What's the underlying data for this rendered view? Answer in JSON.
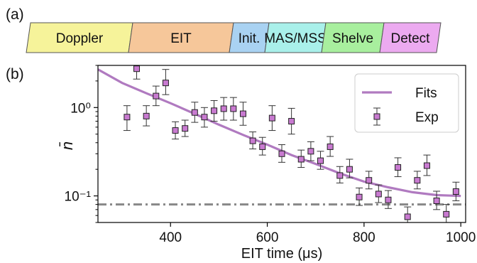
{
  "panel_a": {
    "label": "(a)",
    "blocks": [
      {
        "label": "Doppler",
        "color": "#f6f39a"
      },
      {
        "label": "EIT",
        "color": "#f6c79a"
      },
      {
        "label": "Init.",
        "color": "#a9d2f2"
      },
      {
        "label": "MAS/MSS",
        "color": "#a9f0ea"
      },
      {
        "label": "Shelve",
        "color": "#a8ef9e"
      },
      {
        "label": "Detect",
        "color": "#ecaaf0"
      }
    ]
  },
  "panel_b": {
    "label": "(b)"
  },
  "chart_data": {
    "type": "scatter",
    "xlabel": "EIT time (μs)",
    "ylabel": "n̄",
    "xlim": [
      250,
      1010
    ],
    "ylim": [
      0.05,
      3.0
    ],
    "yscale": "log",
    "xticks": [
      400,
      600,
      800,
      1000
    ],
    "xtick_labels": [
      "400",
      "600",
      "800",
      "1000"
    ],
    "yticks": [
      0.1,
      1.0
    ],
    "ytick_labels": [
      "10⁻¹",
      "10⁰"
    ],
    "legend": {
      "position": "top-right",
      "entries": [
        "Fits",
        "Exp"
      ]
    },
    "series": [
      {
        "name": "Fits",
        "kind": "line",
        "color": "#b07ac0",
        "x": [
          250,
          300,
          350,
          400,
          450,
          500,
          550,
          600,
          650,
          700,
          750,
          800,
          850,
          900,
          950,
          1000
        ],
        "y": [
          2.7,
          1.9,
          1.45,
          1.12,
          0.85,
          0.64,
          0.49,
          0.38,
          0.29,
          0.23,
          0.18,
          0.145,
          0.125,
          0.11,
          0.102,
          0.1
        ]
      },
      {
        "name": "Exp",
        "kind": "scatter",
        "color": "#c87ad0",
        "x": [
          310,
          330,
          350,
          370,
          390,
          410,
          430,
          450,
          470,
          490,
          510,
          530,
          550,
          570,
          590,
          610,
          630,
          650,
          670,
          690,
          710,
          730,
          750,
          770,
          790,
          810,
          830,
          850,
          870,
          890,
          910,
          930,
          950,
          970,
          990
        ],
        "y": [
          0.78,
          2.75,
          0.8,
          1.35,
          1.9,
          0.55,
          0.58,
          0.88,
          0.78,
          0.92,
          0.97,
          0.97,
          0.85,
          0.42,
          0.36,
          0.76,
          0.3,
          0.7,
          0.26,
          0.32,
          0.25,
          0.36,
          0.17,
          0.2,
          0.097,
          0.15,
          0.105,
          0.09,
          0.21,
          0.058,
          0.15,
          0.22,
          0.088,
          0.062,
          0.112
        ],
        "err_lo": [
          0.55,
          2.1,
          0.62,
          1.05,
          1.4,
          0.44,
          0.47,
          0.68,
          0.6,
          0.7,
          0.72,
          0.72,
          0.63,
          0.34,
          0.29,
          0.55,
          0.24,
          0.5,
          0.21,
          0.25,
          0.2,
          0.28,
          0.14,
          0.16,
          0.078,
          0.12,
          0.084,
          0.072,
          0.165,
          0.046,
          0.12,
          0.17,
          0.07,
          0.05,
          0.088
        ],
        "err_hi": [
          1.05,
          3.5,
          1.05,
          1.75,
          2.7,
          0.69,
          0.72,
          1.15,
          1.0,
          1.2,
          1.3,
          1.3,
          1.15,
          0.53,
          0.46,
          1.05,
          0.38,
          0.98,
          0.33,
          0.41,
          0.32,
          0.47,
          0.215,
          0.26,
          0.123,
          0.19,
          0.133,
          0.115,
          0.27,
          0.075,
          0.19,
          0.29,
          0.113,
          0.08,
          0.143
        ]
      },
      {
        "name": "",
        "kind": "hline",
        "color": "#888888",
        "dash": "dash-dot",
        "y": 0.08
      }
    ]
  }
}
